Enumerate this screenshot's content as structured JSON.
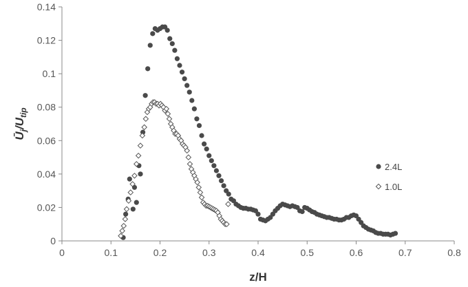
{
  "chart_data": {
    "type": "scatter",
    "xlabel": "z/H",
    "ylabel": "Ū_j/U_tip",
    "ylabel_main": "Ū",
    "ylabel_sub1": "j",
    "ylabel_mid": "/U",
    "ylabel_sub2": "tip",
    "xlim": [
      0,
      0.8
    ],
    "ylim": [
      0,
      0.14
    ],
    "x_ticks": [
      "0",
      "0.1",
      "0.2",
      "0.3",
      "0.4",
      "0.5",
      "0.6",
      "0.7",
      "0.8"
    ],
    "y_ticks": [
      "0",
      "0.02",
      "0.04",
      "0.06",
      "0.08",
      "0.1",
      "0.12",
      "0.14"
    ],
    "grid": false,
    "legend_position": "right",
    "colors": {
      "series_2_4L": "#4a4a4a",
      "series_1_0L": "#555555",
      "axis": "#888888"
    },
    "series": [
      {
        "name": "2.4L",
        "marker": "circle-filled",
        "points": [
          [
            0.125,
            0.002
          ],
          [
            0.13,
            0.016
          ],
          [
            0.135,
            0.025
          ],
          [
            0.138,
            0.037
          ],
          [
            0.145,
            0.019
          ],
          [
            0.148,
            0.032
          ],
          [
            0.152,
            0.023
          ],
          [
            0.157,
            0.045
          ],
          [
            0.16,
            0.04
          ],
          [
            0.165,
            0.065
          ],
          [
            0.17,
            0.087
          ],
          [
            0.175,
            0.103
          ],
          [
            0.18,
            0.117
          ],
          [
            0.185,
            0.124
          ],
          [
            0.19,
            0.127
          ],
          [
            0.195,
            0.126
          ],
          [
            0.2,
            0.127
          ],
          [
            0.205,
            0.128
          ],
          [
            0.21,
            0.128
          ],
          [
            0.215,
            0.126
          ],
          [
            0.22,
            0.121
          ],
          [
            0.225,
            0.118
          ],
          [
            0.23,
            0.114
          ],
          [
            0.235,
            0.109
          ],
          [
            0.24,
            0.105
          ],
          [
            0.245,
            0.101
          ],
          [
            0.25,
            0.097
          ],
          [
            0.255,
            0.093
          ],
          [
            0.26,
            0.089
          ],
          [
            0.265,
            0.084
          ],
          [
            0.27,
            0.079
          ],
          [
            0.275,
            0.073
          ],
          [
            0.28,
            0.069
          ],
          [
            0.285,
            0.063
          ],
          [
            0.29,
            0.058
          ],
          [
            0.295,
            0.055
          ],
          [
            0.3,
            0.051
          ],
          [
            0.305,
            0.048
          ],
          [
            0.31,
            0.045
          ],
          [
            0.315,
            0.042
          ],
          [
            0.32,
            0.039
          ],
          [
            0.325,
            0.036
          ],
          [
            0.33,
            0.033
          ],
          [
            0.335,
            0.03
          ],
          [
            0.34,
            0.028
          ],
          [
            0.345,
            0.025
          ],
          [
            0.35,
            0.024
          ],
          [
            0.355,
            0.022
          ],
          [
            0.36,
            0.021
          ],
          [
            0.365,
            0.02
          ],
          [
            0.37,
            0.0195
          ],
          [
            0.375,
            0.0195
          ],
          [
            0.38,
            0.019
          ],
          [
            0.385,
            0.019
          ],
          [
            0.39,
            0.0185
          ],
          [
            0.395,
            0.018
          ],
          [
            0.4,
            0.016
          ],
          [
            0.405,
            0.013
          ],
          [
            0.41,
            0.0125
          ],
          [
            0.415,
            0.012
          ],
          [
            0.42,
            0.013
          ],
          [
            0.425,
            0.014
          ],
          [
            0.43,
            0.016
          ],
          [
            0.435,
            0.018
          ],
          [
            0.44,
            0.0195
          ],
          [
            0.445,
            0.021
          ],
          [
            0.45,
            0.022
          ],
          [
            0.455,
            0.0215
          ],
          [
            0.46,
            0.021
          ],
          [
            0.465,
            0.0205
          ],
          [
            0.47,
            0.021
          ],
          [
            0.475,
            0.0205
          ],
          [
            0.48,
            0.02
          ],
          [
            0.485,
            0.018
          ],
          [
            0.49,
            0.0175
          ],
          [
            0.495,
            0.02
          ],
          [
            0.5,
            0.0195
          ],
          [
            0.505,
            0.0185
          ],
          [
            0.51,
            0.0175
          ],
          [
            0.515,
            0.017
          ],
          [
            0.52,
            0.016
          ],
          [
            0.525,
            0.0155
          ],
          [
            0.53,
            0.015
          ],
          [
            0.535,
            0.0145
          ],
          [
            0.54,
            0.014
          ],
          [
            0.545,
            0.014
          ],
          [
            0.55,
            0.0135
          ],
          [
            0.555,
            0.013
          ],
          [
            0.56,
            0.013
          ],
          [
            0.565,
            0.0125
          ],
          [
            0.57,
            0.0125
          ],
          [
            0.575,
            0.013
          ],
          [
            0.58,
            0.014
          ],
          [
            0.585,
            0.014
          ],
          [
            0.59,
            0.015
          ],
          [
            0.595,
            0.0155
          ],
          [
            0.6,
            0.015
          ],
          [
            0.605,
            0.013
          ],
          [
            0.61,
            0.011
          ],
          [
            0.615,
            0.009
          ],
          [
            0.62,
            0.008
          ],
          [
            0.625,
            0.007
          ],
          [
            0.63,
            0.0065
          ],
          [
            0.635,
            0.006
          ],
          [
            0.64,
            0.005
          ],
          [
            0.645,
            0.0045
          ],
          [
            0.65,
            0.0045
          ],
          [
            0.655,
            0.004
          ],
          [
            0.66,
            0.004
          ],
          [
            0.665,
            0.004
          ],
          [
            0.67,
            0.0035
          ],
          [
            0.675,
            0.004
          ],
          [
            0.68,
            0.0045
          ]
        ]
      },
      {
        "name": "1.0L",
        "marker": "diamond-open",
        "points": [
          [
            0.12,
            0.003
          ],
          [
            0.123,
            0.006
          ],
          [
            0.126,
            0.009
          ],
          [
            0.129,
            0.013
          ],
          [
            0.132,
            0.019
          ],
          [
            0.136,
            0.024
          ],
          [
            0.14,
            0.029
          ],
          [
            0.144,
            0.034
          ],
          [
            0.148,
            0.039
          ],
          [
            0.152,
            0.046
          ],
          [
            0.156,
            0.051
          ],
          [
            0.16,
            0.057
          ],
          [
            0.164,
            0.063
          ],
          [
            0.168,
            0.068
          ],
          [
            0.171,
            0.073
          ],
          [
            0.174,
            0.077
          ],
          [
            0.177,
            0.079
          ],
          [
            0.18,
            0.08
          ],
          [
            0.183,
            0.082
          ],
          [
            0.186,
            0.083
          ],
          [
            0.189,
            0.083
          ],
          [
            0.192,
            0.082
          ],
          [
            0.195,
            0.082
          ],
          [
            0.198,
            0.081
          ],
          [
            0.201,
            0.082
          ],
          [
            0.204,
            0.081
          ],
          [
            0.207,
            0.08
          ],
          [
            0.21,
            0.078
          ],
          [
            0.213,
            0.079
          ],
          [
            0.216,
            0.076
          ],
          [
            0.219,
            0.073
          ],
          [
            0.222,
            0.07
          ],
          [
            0.225,
            0.068
          ],
          [
            0.228,
            0.066
          ],
          [
            0.231,
            0.064
          ],
          [
            0.234,
            0.064
          ],
          [
            0.237,
            0.063
          ],
          [
            0.24,
            0.061
          ],
          [
            0.243,
            0.06
          ],
          [
            0.246,
            0.058
          ],
          [
            0.249,
            0.057
          ],
          [
            0.252,
            0.056
          ],
          [
            0.255,
            0.054
          ],
          [
            0.258,
            0.05
          ],
          [
            0.261,
            0.046
          ],
          [
            0.264,
            0.043
          ],
          [
            0.267,
            0.041
          ],
          [
            0.27,
            0.039
          ],
          [
            0.273,
            0.037
          ],
          [
            0.276,
            0.035
          ],
          [
            0.279,
            0.032
          ],
          [
            0.282,
            0.029
          ],
          [
            0.285,
            0.026
          ],
          [
            0.288,
            0.023
          ],
          [
            0.291,
            0.022
          ],
          [
            0.294,
            0.021
          ],
          [
            0.297,
            0.021
          ],
          [
            0.3,
            0.0205
          ],
          [
            0.303,
            0.02
          ],
          [
            0.306,
            0.0195
          ],
          [
            0.309,
            0.019
          ],
          [
            0.312,
            0.0185
          ],
          [
            0.315,
            0.018
          ],
          [
            0.318,
            0.017
          ],
          [
            0.321,
            0.015
          ],
          [
            0.324,
            0.013
          ],
          [
            0.327,
            0.012
          ],
          [
            0.33,
            0.011
          ],
          [
            0.333,
            0.01
          ],
          [
            0.336,
            0.01
          ],
          [
            0.339,
            0.022
          ]
        ]
      }
    ]
  }
}
